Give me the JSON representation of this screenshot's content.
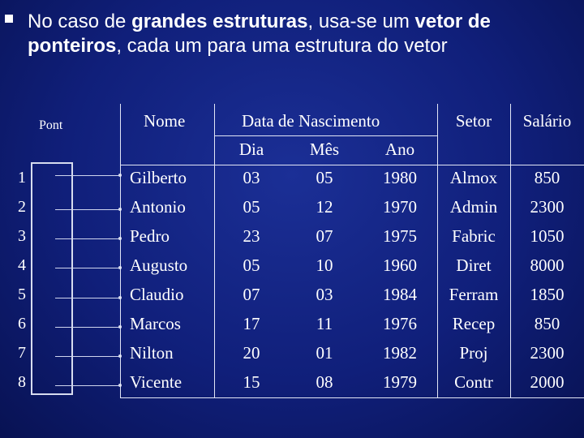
{
  "bullet": {
    "t1": "No caso de ",
    "t2": "grandes estruturas",
    "t3": ", usa-se um ",
    "t4": "vetor de ponteiros",
    "t5": ", cada um para uma estrutura do vetor"
  },
  "pointer_label": "Pont",
  "indices": [
    "1",
    "2",
    "3",
    "4",
    "5",
    "6",
    "7",
    "8"
  ],
  "headers": {
    "nome": "Nome",
    "data_nasc": "Data de Nascimento",
    "dia": "Dia",
    "mes": "Mês",
    "ano": "Ano",
    "setor": "Setor",
    "salario": "Salário"
  },
  "rows": [
    {
      "nome": "Gilberto",
      "dia": "03",
      "mes": "05",
      "ano": "1980",
      "setor": "Almox",
      "salario": "850"
    },
    {
      "nome": "Antonio",
      "dia": "05",
      "mes": "12",
      "ano": "1970",
      "setor": "Admin",
      "salario": "2300"
    },
    {
      "nome": "Pedro",
      "dia": "23",
      "mes": "07",
      "ano": "1975",
      "setor": "Fabric",
      "salario": "1050"
    },
    {
      "nome": "Augusto",
      "dia": "05",
      "mes": "10",
      "ano": "1960",
      "setor": "Diret",
      "salario": "8000"
    },
    {
      "nome": "Claudio",
      "dia": "07",
      "mes": "03",
      "ano": "1984",
      "setor": "Ferram",
      "salario": "1850"
    },
    {
      "nome": "Marcos",
      "dia": "17",
      "mes": "11",
      "ano": "1976",
      "setor": "Recep",
      "salario": "850"
    },
    {
      "nome": "Nilton",
      "dia": "20",
      "mes": "01",
      "ano": "1982",
      "setor": "Proj",
      "salario": "2300"
    },
    {
      "nome": "Vicente",
      "dia": "15",
      "mes": "08",
      "ano": "1979",
      "setor": "Contr",
      "salario": "2000"
    }
  ]
}
